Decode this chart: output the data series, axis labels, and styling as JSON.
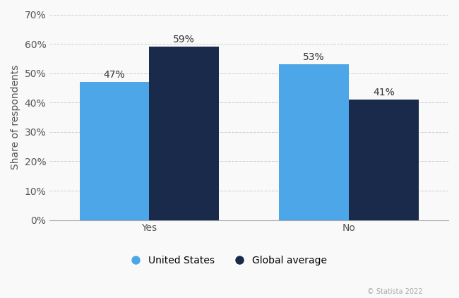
{
  "categories": [
    "Yes",
    "No"
  ],
  "us_values": [
    47,
    53
  ],
  "global_values": [
    59,
    41
  ],
  "us_color": "#4da6e8",
  "global_color": "#1a2a4a",
  "ylabel": "Share of respondents",
  "ylim": [
    0,
    70
  ],
  "yticks": [
    0,
    10,
    20,
    30,
    40,
    50,
    60,
    70
  ],
  "ytick_labels": [
    "0%",
    "10%",
    "20%",
    "30%",
    "40%",
    "50%",
    "60%",
    "70%"
  ],
  "bar_width": 0.35,
  "legend_labels": [
    "United States",
    "Global average"
  ],
  "annotation_fontsize": 10,
  "axis_label_fontsize": 10,
  "tick_fontsize": 10,
  "legend_fontsize": 10,
  "background_color": "#f9f9f9",
  "grid_color": "#cccccc",
  "watermark": "© Statista 2022"
}
